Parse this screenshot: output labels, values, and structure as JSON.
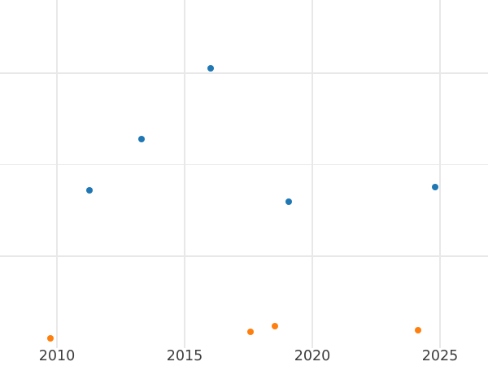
{
  "chart_data": {
    "type": "scatter",
    "title": "",
    "xlabel": "",
    "ylabel": "",
    "grid": true,
    "legend": false,
    "xlim": [
      2007.77,
      2026.88
    ],
    "ylim": [
      0,
      3.8
    ],
    "x_ticks": [
      2010,
      2015,
      2020,
      2025
    ],
    "x_tick_labels": [
      "2010",
      "2015",
      "2020",
      "2025"
    ],
    "y_ticks": [
      1,
      2,
      3
    ],
    "y_tick_labels": [
      "",
      "",
      ""
    ],
    "marker": {
      "shape": "circle",
      "radius_px": 4
    },
    "series": [
      {
        "name": "blue",
        "color": "#1f77b4",
        "points": [
          {
            "x": 2011.27,
            "y": 1.72
          },
          {
            "x": 2013.31,
            "y": 2.28
          },
          {
            "x": 2016.02,
            "y": 3.05
          },
          {
            "x": 2019.08,
            "y": 1.6
          },
          {
            "x": 2024.81,
            "y": 1.76
          }
        ]
      },
      {
        "name": "orange",
        "color": "#ff7f0e",
        "points": [
          {
            "x": 2009.75,
            "y": 0.1
          },
          {
            "x": 2017.58,
            "y": 0.17
          },
          {
            "x": 2018.54,
            "y": 0.24
          },
          {
            "x": 2024.14,
            "y": 0.19
          }
        ]
      }
    ]
  },
  "style": {
    "background_color": "#ffffff",
    "grid_color": "#e8e8e8",
    "tick_label_color": "#3d3d3d"
  }
}
